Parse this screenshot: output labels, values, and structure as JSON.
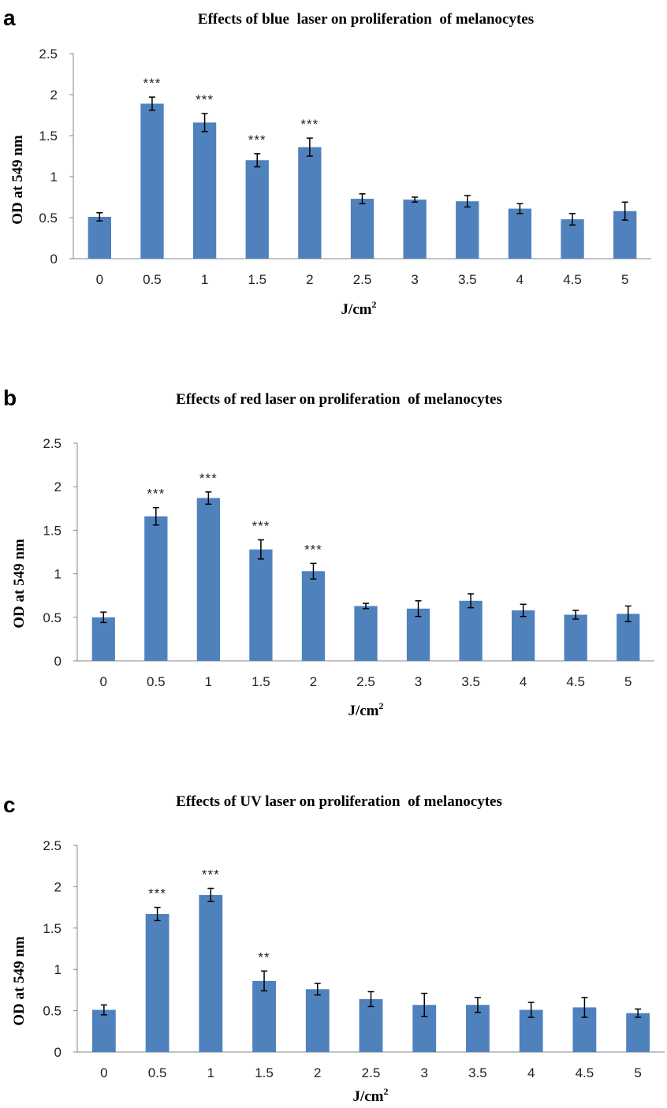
{
  "chart_data": [
    {
      "type": "bar",
      "panel_label": "a",
      "title": "Effects of blue  laser on proliferation  of melanocytes",
      "xlabel": "J/cm",
      "xlabel_sup": "2",
      "ylabel": "OD at 549 nm",
      "categories": [
        "0",
        "0.5",
        "1",
        "1.5",
        "2",
        "2.5",
        "3",
        "3.5",
        "4",
        "4.5",
        "5"
      ],
      "values": [
        0.51,
        1.89,
        1.66,
        1.2,
        1.36,
        0.73,
        0.72,
        0.7,
        0.61,
        0.48,
        0.58
      ],
      "errors": [
        0.05,
        0.08,
        0.11,
        0.08,
        0.11,
        0.06,
        0.03,
        0.07,
        0.06,
        0.07,
        0.11
      ],
      "significance": [
        "",
        "***",
        "***",
        "***",
        "***",
        "",
        "",
        "",
        "",
        "",
        ""
      ],
      "ylim": [
        0,
        2.5
      ],
      "yticks": [
        "0",
        "0.5",
        "1",
        "1.5",
        "2",
        "2.5"
      ],
      "bar_color": "#4f81bd",
      "grid": false
    },
    {
      "type": "bar",
      "panel_label": "b",
      "title": "Effects of red laser on proliferation  of melanocytes",
      "xlabel": "J/cm",
      "xlabel_sup": "2",
      "ylabel": "OD at 549 nm",
      "categories": [
        "0",
        "0.5",
        "1",
        "1.5",
        "2",
        "2.5",
        "3",
        "3.5",
        "4",
        "4.5",
        "5"
      ],
      "values": [
        0.5,
        1.66,
        1.87,
        1.28,
        1.03,
        0.63,
        0.6,
        0.69,
        0.58,
        0.53,
        0.54
      ],
      "errors": [
        0.06,
        0.1,
        0.07,
        0.11,
        0.09,
        0.03,
        0.09,
        0.08,
        0.07,
        0.05,
        0.09
      ],
      "significance": [
        "",
        "***",
        "***",
        "***",
        "***",
        "",
        "",
        "",
        "",
        "",
        ""
      ],
      "ylim": [
        0,
        2.5
      ],
      "yticks": [
        "0",
        "0.5",
        "1",
        "1.5",
        "2",
        "2.5"
      ],
      "bar_color": "#4f81bd",
      "grid": false
    },
    {
      "type": "bar",
      "panel_label": "c",
      "title": "Effects of UV laser on proliferation  of melanocytes",
      "xlabel": "J/cm",
      "xlabel_sup": "2",
      "ylabel": "OD at 549 nm",
      "categories": [
        "0",
        "0.5",
        "1",
        "1.5",
        "2",
        "2.5",
        "3",
        "3.5",
        "4",
        "4.5",
        "5"
      ],
      "values": [
        0.51,
        1.67,
        1.9,
        0.86,
        0.76,
        0.64,
        0.57,
        0.57,
        0.51,
        0.54,
        0.47
      ],
      "errors": [
        0.06,
        0.08,
        0.08,
        0.12,
        0.07,
        0.09,
        0.14,
        0.09,
        0.09,
        0.12,
        0.05
      ],
      "significance": [
        "",
        "***",
        "***",
        "**",
        "",
        "",
        "",
        "",
        "",
        "",
        ""
      ],
      "ylim": [
        0,
        2.5
      ],
      "yticks": [
        "0",
        "0.5",
        "1",
        "1.5",
        "2",
        "2.5"
      ],
      "bar_color": "#4f81bd",
      "grid": false
    }
  ]
}
